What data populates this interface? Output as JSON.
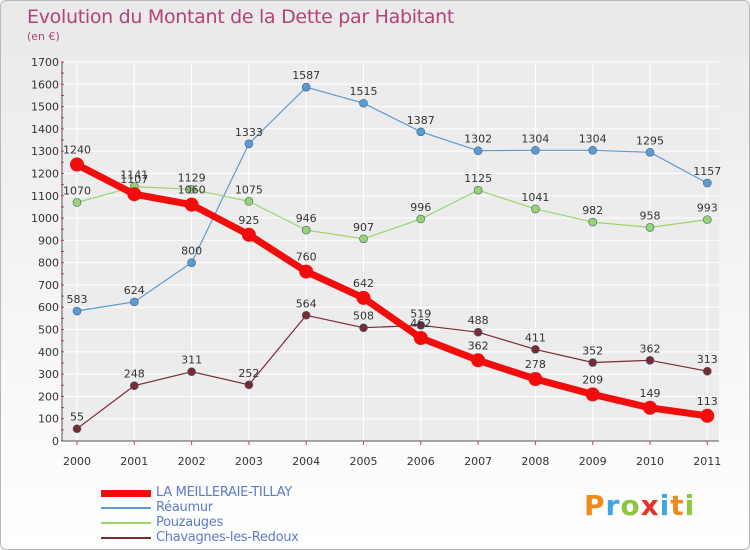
{
  "title": "Evolution du Montant de la Dette par Habitant",
  "subtitle": "(en €)",
  "brand": {
    "letters": [
      "P",
      "r",
      "o",
      "x",
      "i",
      "t",
      "i"
    ],
    "colors": [
      "#f08a1c",
      "#3fa6e0",
      "#8cc63f",
      "#e6332a",
      "#3fa6e0",
      "#f08a1c",
      "#8cc63f"
    ]
  },
  "chart_data": {
    "type": "line",
    "x": [
      2000,
      2001,
      2002,
      2003,
      2004,
      2005,
      2006,
      2007,
      2008,
      2009,
      2010,
      2011
    ],
    "ylim": [
      0,
      1700
    ],
    "yticks": [
      0,
      100,
      200,
      300,
      400,
      500,
      600,
      700,
      800,
      900,
      1000,
      1100,
      1200,
      1300,
      1400,
      1500,
      1600,
      1700
    ],
    "grid": true,
    "legend_position": "bottom-left",
    "series": [
      {
        "name": "Réaumur",
        "color": "#5c9bd1",
        "width": 1.2,
        "marker": 4,
        "values": [
          583,
          624,
          800,
          1333,
          1587,
          1515,
          1387,
          1302,
          1304,
          1304,
          1295,
          1157
        ]
      },
      {
        "name": "Pouzauges",
        "color": "#99d46e",
        "width": 1.2,
        "marker": 4,
        "values": [
          1070,
          1141,
          1129,
          1075,
          946,
          907,
          996,
          1125,
          1041,
          982,
          958,
          993
        ]
      },
      {
        "name": "Chavagnes-les-Redoux",
        "color": "#7a2b2f",
        "width": 1.2,
        "marker": 4,
        "values": [
          55,
          248,
          311,
          252,
          564,
          508,
          519,
          488,
          411,
          352,
          362,
          313
        ]
      },
      {
        "name": "LA MEILLERAIE-TILLAY",
        "color": "#f20d0d",
        "width": 7,
        "marker": 7,
        "values": [
          1240,
          1107,
          1060,
          925,
          760,
          642,
          462,
          362,
          278,
          209,
          149,
          113
        ]
      }
    ]
  }
}
